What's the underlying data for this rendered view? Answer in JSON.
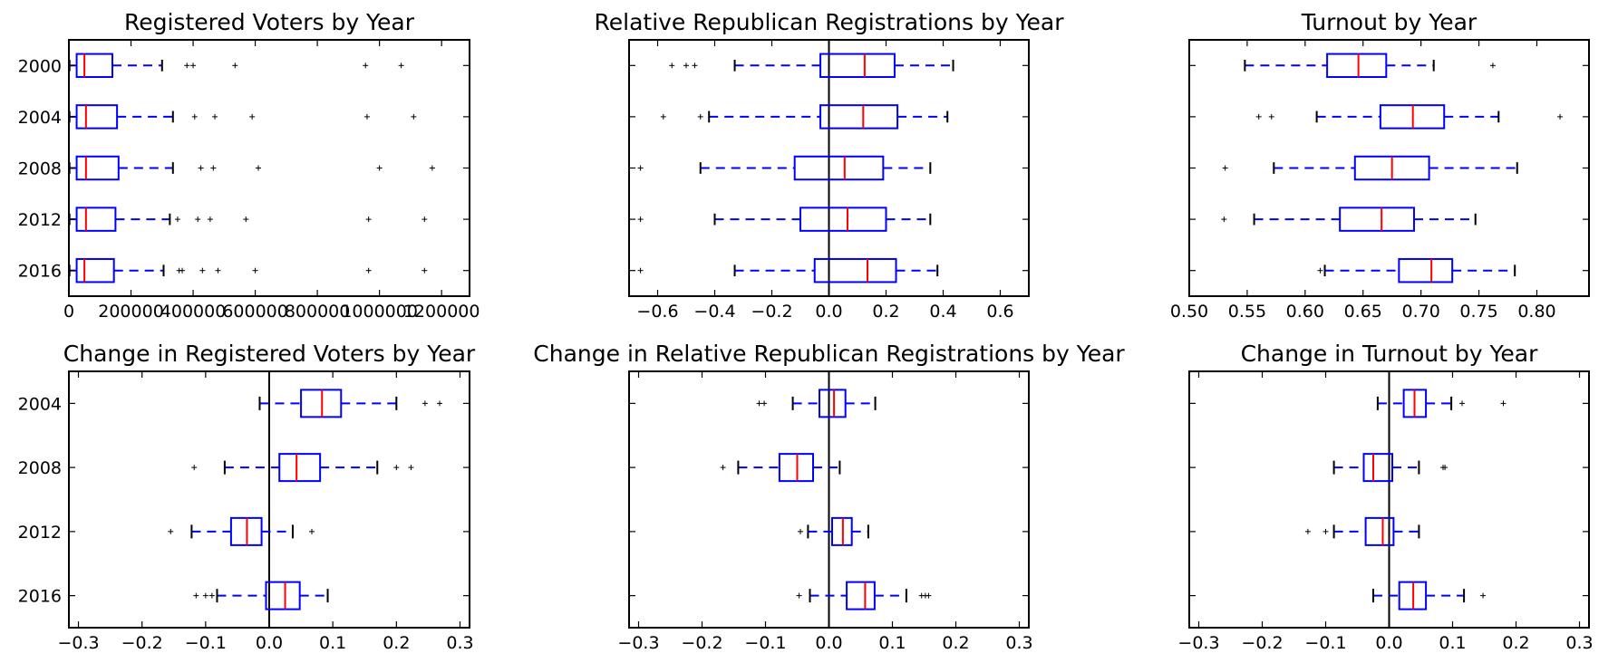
{
  "chart_data": [
    {
      "type": "boxplot",
      "title": "Registered Voters by Year",
      "categories": [
        "2000",
        "2004",
        "2008",
        "2012",
        "2016"
      ],
      "xlim": [
        0,
        1290000
      ],
      "xticks": [
        0,
        200000,
        400000,
        600000,
        800000,
        1000000,
        1200000
      ],
      "xtick_labels": [
        "0",
        "200000",
        "400000",
        "600000",
        "800000",
        "1000000",
        "1200000"
      ],
      "zero_line": false,
      "show_y_labels": true,
      "boxes": [
        {
          "whislo": 2000,
          "q1": 25000,
          "med": 50000,
          "q3": 140000,
          "whishi": 300000,
          "fliers": [
            380000,
            400000,
            535000,
            955000,
            1070000
          ]
        },
        {
          "whislo": 2000,
          "q1": 25000,
          "med": 55000,
          "q3": 155000,
          "whishi": 335000,
          "fliers": [
            405000,
            470000,
            590000,
            960000,
            1110000
          ]
        },
        {
          "whislo": 2000,
          "q1": 25000,
          "med": 55000,
          "q3": 160000,
          "whishi": 335000,
          "fliers": [
            425000,
            465000,
            610000,
            1000000,
            1170000
          ]
        },
        {
          "whislo": 2000,
          "q1": 25000,
          "med": 55000,
          "q3": 150000,
          "whishi": 325000,
          "fliers": [
            350000,
            415000,
            455000,
            570000,
            965000,
            1145000
          ]
        },
        {
          "whislo": 2000,
          "q1": 25000,
          "med": 50000,
          "q3": 145000,
          "whishi": 305000,
          "fliers": [
            355000,
            365000,
            430000,
            480000,
            600000,
            965000,
            1145000
          ]
        }
      ]
    },
    {
      "type": "boxplot",
      "title": "Relative Republican Registrations by Year",
      "categories": [
        "2000",
        "2004",
        "2008",
        "2012",
        "2016"
      ],
      "xlim": [
        -0.7,
        0.7
      ],
      "xticks": [
        -0.6,
        -0.4,
        -0.2,
        0.0,
        0.2,
        0.4,
        0.6
      ],
      "xtick_labels": [
        "−0.6",
        "−0.4",
        "−0.2",
        "0.0",
        "0.2",
        "0.4",
        "0.6"
      ],
      "zero_line": true,
      "show_y_labels": false,
      "boxes": [
        {
          "whislo": -0.33,
          "q1": -0.03,
          "med": 0.125,
          "q3": 0.23,
          "whishi": 0.435,
          "fliers": [
            -0.55,
            -0.5,
            -0.47
          ]
        },
        {
          "whislo": -0.42,
          "q1": -0.03,
          "med": 0.12,
          "q3": 0.24,
          "whishi": 0.415,
          "fliers": [
            -0.58,
            -0.45
          ]
        },
        {
          "whislo": -0.45,
          "q1": -0.12,
          "med": 0.055,
          "q3": 0.19,
          "whishi": 0.355,
          "fliers": [
            -0.66
          ]
        },
        {
          "whislo": -0.4,
          "q1": -0.1,
          "med": 0.065,
          "q3": 0.2,
          "whishi": 0.355,
          "fliers": [
            -0.66
          ]
        },
        {
          "whislo": -0.33,
          "q1": -0.05,
          "med": 0.135,
          "q3": 0.235,
          "whishi": 0.38,
          "fliers": [
            -0.66
          ]
        }
      ]
    },
    {
      "type": "boxplot",
      "title": "Turnout by Year",
      "categories": [
        "2000",
        "2004",
        "2008",
        "2012",
        "2016"
      ],
      "xlim": [
        0.5,
        0.845
      ],
      "xticks": [
        0.5,
        0.55,
        0.6,
        0.65,
        0.7,
        0.75,
        0.8
      ],
      "xtick_labels": [
        "0.50",
        "0.55",
        "0.60",
        "0.65",
        "0.70",
        "0.75",
        "0.80"
      ],
      "zero_line": false,
      "show_y_labels": false,
      "boxes": [
        {
          "whislo": 0.548,
          "q1": 0.619,
          "med": 0.646,
          "q3": 0.67,
          "whishi": 0.711,
          "fliers": [
            0.762
          ]
        },
        {
          "whislo": 0.61,
          "q1": 0.665,
          "med": 0.693,
          "q3": 0.72,
          "whishi": 0.767,
          "fliers": [
            0.56,
            0.571,
            0.82
          ]
        },
        {
          "whislo": 0.573,
          "q1": 0.643,
          "med": 0.675,
          "q3": 0.707,
          "whishi": 0.783,
          "fliers": [
            0.531
          ]
        },
        {
          "whislo": 0.556,
          "q1": 0.63,
          "med": 0.666,
          "q3": 0.694,
          "whishi": 0.747,
          "fliers": [
            0.53
          ]
        },
        {
          "whislo": 0.617,
          "q1": 0.681,
          "med": 0.709,
          "q3": 0.727,
          "whishi": 0.781,
          "fliers": [
            0.613
          ]
        }
      ]
    },
    {
      "type": "boxplot",
      "title": "Change in Registered Voters by Year",
      "categories": [
        "2004",
        "2008",
        "2012",
        "2016"
      ],
      "xlim": [
        -0.315,
        0.315
      ],
      "xticks": [
        -0.3,
        -0.2,
        -0.1,
        0.0,
        0.1,
        0.2,
        0.3
      ],
      "xtick_labels": [
        "−0.3",
        "−0.2",
        "−0.1",
        "0.0",
        "0.1",
        "0.2",
        "0.3"
      ],
      "zero_line": true,
      "show_y_labels": true,
      "boxes": [
        {
          "whislo": -0.015,
          "q1": 0.05,
          "med": 0.083,
          "q3": 0.113,
          "whishi": 0.2,
          "fliers": [
            0.245,
            0.268
          ]
        },
        {
          "whislo": -0.07,
          "q1": 0.016,
          "med": 0.043,
          "q3": 0.08,
          "whishi": 0.17,
          "fliers": [
            -0.118,
            0.2,
            0.223
          ]
        },
        {
          "whislo": -0.122,
          "q1": -0.06,
          "med": -0.035,
          "q3": -0.012,
          "whishi": 0.037,
          "fliers": [
            -0.155,
            0.067
          ]
        },
        {
          "whislo": -0.082,
          "q1": -0.005,
          "med": 0.025,
          "q3": 0.048,
          "whishi": 0.092,
          "fliers": [
            -0.115,
            -0.1,
            -0.09
          ]
        }
      ]
    },
    {
      "type": "boxplot",
      "title": "Change in Relative Republican Registrations by Year",
      "categories": [
        "2004",
        "2008",
        "2012",
        "2016"
      ],
      "xlim": [
        -0.315,
        0.315
      ],
      "xticks": [
        -0.3,
        -0.2,
        -0.1,
        0.0,
        0.1,
        0.2,
        0.3
      ],
      "xtick_labels": [
        "−0.3",
        "−0.2",
        "−0.1",
        "0.0",
        "0.1",
        "0.2",
        "0.3"
      ],
      "zero_line": true,
      "show_y_labels": false,
      "boxes": [
        {
          "whislo": -0.057,
          "q1": -0.015,
          "med": 0.008,
          "q3": 0.026,
          "whishi": 0.073,
          "fliers": [
            -0.11,
            -0.102
          ]
        },
        {
          "whislo": -0.143,
          "q1": -0.078,
          "med": -0.05,
          "q3": -0.025,
          "whishi": 0.017,
          "fliers": [
            -0.167
          ]
        },
        {
          "whislo": -0.033,
          "q1": 0.005,
          "med": 0.022,
          "q3": 0.036,
          "whishi": 0.062,
          "fliers": [
            -0.045
          ]
        },
        {
          "whislo": -0.03,
          "q1": 0.028,
          "med": 0.057,
          "q3": 0.072,
          "whishi": 0.122,
          "fliers": [
            -0.047,
            0.146,
            0.152,
            0.157
          ]
        }
      ]
    },
    {
      "type": "boxplot",
      "title": "Change in Turnout by Year",
      "categories": [
        "2004",
        "2008",
        "2012",
        "2016"
      ],
      "xlim": [
        -0.315,
        0.315
      ],
      "xticks": [
        -0.3,
        -0.2,
        -0.1,
        0.0,
        0.1,
        0.2,
        0.3
      ],
      "xtick_labels": [
        "−0.3",
        "−0.2",
        "−0.1",
        "0.0",
        "0.1",
        "0.2",
        "0.3"
      ],
      "zero_line": true,
      "show_y_labels": false,
      "boxes": [
        {
          "whislo": -0.018,
          "q1": 0.023,
          "med": 0.04,
          "q3": 0.058,
          "whishi": 0.098,
          "fliers": [
            0.115,
            0.18
          ]
        },
        {
          "whislo": -0.087,
          "q1": -0.04,
          "med": -0.025,
          "q3": 0.005,
          "whishi": 0.047,
          "fliers": [
            0.085,
            0.088
          ]
        },
        {
          "whislo": -0.087,
          "q1": -0.037,
          "med": -0.01,
          "q3": 0.007,
          "whishi": 0.047,
          "fliers": [
            -0.128,
            -0.1
          ]
        },
        {
          "whislo": -0.025,
          "q1": 0.016,
          "med": 0.038,
          "q3": 0.058,
          "whishi": 0.118,
          "fliers": [
            0.148
          ]
        }
      ]
    }
  ],
  "colors": {
    "box": "#0000ff",
    "median": "#ff0000",
    "axes": "#000000",
    "background": "#ffffff"
  }
}
